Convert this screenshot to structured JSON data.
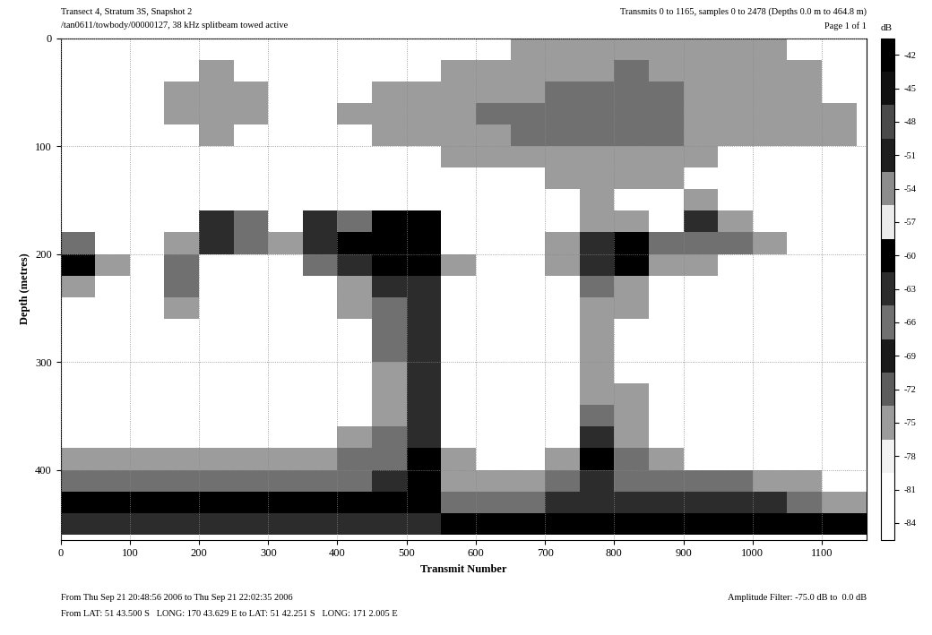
{
  "chart_data": {
    "type": "heatmap",
    "title": "Transect 4, Stratum 3S, Snapshot 2",
    "subtitle": "/tan0611/towbody/00000127, 38 kHz splitbeam towed active",
    "annotations": [
      "Transmits 0 to 1165, samples 0 to 2478 (Depths 0.0 m to 464.8 m)",
      "Page 1 of 1",
      "From Thu Sep 21 20:48:56 2006 to Thu Sep 21 22:02:35 2006",
      "From LAT: 51 43.500 S   LONG: 170 43.629 E to LAT: 51 42.251 S   LONG: 171 2.005 E",
      "Amplitude Filter: -75.0 dB to  0.0 dB"
    ],
    "x_label": "Transmit Number",
    "y_label": "Depth (metres)",
    "xlim": [
      0,
      1165
    ],
    "xticks": [
      0,
      100,
      200,
      300,
      400,
      500,
      600,
      700,
      800,
      900,
      1000,
      1100
    ],
    "ylim": [
      464.8,
      0
    ],
    "yticks": [
      0,
      100,
      200,
      300,
      400
    ],
    "grid": true,
    "x_edges": [
      0,
      50,
      100,
      150,
      200,
      250,
      300,
      350,
      400,
      450,
      500,
      550,
      600,
      650,
      700,
      750,
      800,
      850,
      900,
      950,
      1000,
      1050,
      1100,
      1150,
      1165
    ],
    "y_edges": [
      0,
      20,
      40,
      60,
      80,
      100,
      120,
      140,
      160,
      180,
      200,
      220,
      240,
      260,
      280,
      300,
      320,
      340,
      360,
      380,
      400,
      420,
      440,
      460,
      464.8
    ],
    "cells": [
      [
        null,
        null,
        null,
        null,
        null,
        null,
        null,
        null,
        null,
        null,
        null,
        null,
        null,
        -75,
        -75,
        -75,
        -75,
        -75,
        -75,
        -75,
        -75,
        null,
        null,
        null
      ],
      [
        null,
        null,
        null,
        null,
        -75,
        null,
        null,
        null,
        null,
        null,
        null,
        -75,
        -75,
        -75,
        -75,
        -75,
        -66,
        -75,
        -75,
        -75,
        -75,
        -75,
        null,
        null
      ],
      [
        null,
        null,
        null,
        -75,
        -75,
        -75,
        null,
        null,
        null,
        -75,
        -75,
        -75,
        -75,
        -75,
        -66,
        -66,
        -66,
        -66,
        -75,
        -75,
        -75,
        -75,
        null,
        null
      ],
      [
        null,
        null,
        null,
        -75,
        -75,
        -75,
        null,
        null,
        -75,
        -75,
        -75,
        -75,
        -66,
        -66,
        -66,
        -66,
        -66,
        -66,
        -75,
        -75,
        -75,
        -75,
        -75,
        null
      ],
      [
        null,
        null,
        null,
        null,
        -75,
        null,
        null,
        null,
        null,
        -75,
        -75,
        -75,
        -75,
        -66,
        -66,
        -66,
        -66,
        -66,
        -75,
        -75,
        -75,
        -75,
        -75,
        null
      ],
      [
        null,
        null,
        null,
        null,
        null,
        null,
        null,
        null,
        null,
        null,
        null,
        -75,
        -75,
        -75,
        -75,
        -75,
        -75,
        -75,
        -75,
        null,
        null,
        null,
        null,
        null
      ],
      [
        null,
        null,
        null,
        null,
        null,
        null,
        null,
        null,
        null,
        null,
        null,
        null,
        null,
        null,
        -75,
        -75,
        -75,
        -75,
        null,
        null,
        null,
        null,
        null,
        null
      ],
      [
        null,
        null,
        null,
        null,
        null,
        null,
        null,
        null,
        null,
        null,
        null,
        null,
        null,
        null,
        null,
        -75,
        null,
        null,
        -75,
        null,
        null,
        null,
        null,
        null
      ],
      [
        null,
        null,
        null,
        null,
        -63,
        -66,
        null,
        -63,
        -66,
        -60,
        -60,
        null,
        null,
        null,
        null,
        -75,
        -75,
        null,
        -63,
        -75,
        null,
        null,
        null,
        null
      ],
      [
        -66,
        null,
        null,
        -75,
        -63,
        -66,
        -75,
        -63,
        -60,
        -60,
        -60,
        null,
        null,
        null,
        -75,
        -63,
        -60,
        -66,
        -66,
        -66,
        -75,
        null,
        null,
        null
      ],
      [
        -60,
        -75,
        null,
        -66,
        null,
        null,
        null,
        -66,
        -63,
        -60,
        -60,
        -75,
        null,
        null,
        -75,
        -63,
        -60,
        -75,
        -75,
        null,
        null,
        null,
        null,
        null
      ],
      [
        -75,
        null,
        null,
        -66,
        null,
        null,
        null,
        null,
        -75,
        -63,
        -63,
        null,
        null,
        null,
        null,
        -66,
        -75,
        null,
        null,
        null,
        null,
        null,
        null,
        null
      ],
      [
        null,
        null,
        null,
        -75,
        null,
        null,
        null,
        null,
        -75,
        -66,
        -63,
        null,
        null,
        null,
        null,
        -75,
        -75,
        null,
        null,
        null,
        null,
        null,
        null,
        null
      ],
      [
        null,
        null,
        null,
        null,
        null,
        null,
        null,
        null,
        null,
        -66,
        -63,
        null,
        null,
        null,
        null,
        -75,
        null,
        null,
        null,
        null,
        null,
        null,
        null,
        null
      ],
      [
        null,
        null,
        null,
        null,
        null,
        null,
        null,
        null,
        null,
        -66,
        -63,
        null,
        null,
        null,
        null,
        -75,
        null,
        null,
        null,
        null,
        null,
        null,
        null,
        null
      ],
      [
        null,
        null,
        null,
        null,
        null,
        null,
        null,
        null,
        null,
        -75,
        -63,
        null,
        null,
        null,
        null,
        -75,
        null,
        null,
        null,
        null,
        null,
        null,
        null,
        null
      ],
      [
        null,
        null,
        null,
        null,
        null,
        null,
        null,
        null,
        null,
        -75,
        -63,
        null,
        null,
        null,
        null,
        -75,
        -75,
        null,
        null,
        null,
        null,
        null,
        null,
        null
      ],
      [
        null,
        null,
        null,
        null,
        null,
        null,
        null,
        null,
        null,
        -75,
        -63,
        null,
        null,
        null,
        null,
        -66,
        -75,
        null,
        null,
        null,
        null,
        null,
        null,
        null
      ],
      [
        null,
        null,
        null,
        null,
        null,
        null,
        null,
        null,
        -75,
        -66,
        -63,
        null,
        null,
        null,
        null,
        -63,
        -75,
        null,
        null,
        null,
        null,
        null,
        null,
        null
      ],
      [
        -75,
        -75,
        -75,
        -75,
        -75,
        -75,
        -75,
        -75,
        -66,
        -66,
        -60,
        -75,
        null,
        null,
        -75,
        -60,
        -66,
        -75,
        null,
        null,
        null,
        null,
        null,
        null
      ],
      [
        -66,
        -66,
        -66,
        -66,
        -66,
        -66,
        -66,
        -66,
        -66,
        -63,
        -60,
        -75,
        -75,
        -75,
        -66,
        -63,
        -66,
        -66,
        -66,
        -66,
        -75,
        -75,
        null,
        null
      ],
      [
        -60,
        -60,
        -60,
        -60,
        -60,
        -60,
        -60,
        -60,
        -60,
        -60,
        -60,
        -66,
        -66,
        -66,
        -63,
        -63,
        -63,
        -63,
        -63,
        -63,
        -63,
        -66,
        -75,
        -75
      ],
      [
        -63,
        -63,
        -63,
        -63,
        -63,
        -63,
        -63,
        -63,
        -63,
        -63,
        -63,
        -60,
        -60,
        -60,
        -60,
        -60,
        -60,
        -60,
        -60,
        -60,
        -60,
        -60,
        -60,
        -60
      ],
      [
        null,
        null,
        null,
        null,
        null,
        null,
        null,
        null,
        null,
        null,
        null,
        null,
        null,
        null,
        null,
        null,
        null,
        null,
        null,
        null,
        null,
        null,
        null,
        null
      ]
    ],
    "colorbar": {
      "label": "dB",
      "lim": [
        -85.5,
        -40.5
      ],
      "ticks": [
        -42,
        -45,
        -48,
        -51,
        -54,
        -57,
        -60,
        -63,
        -66,
        -69,
        -72,
        -75,
        -78,
        -81,
        -84
      ]
    }
  }
}
